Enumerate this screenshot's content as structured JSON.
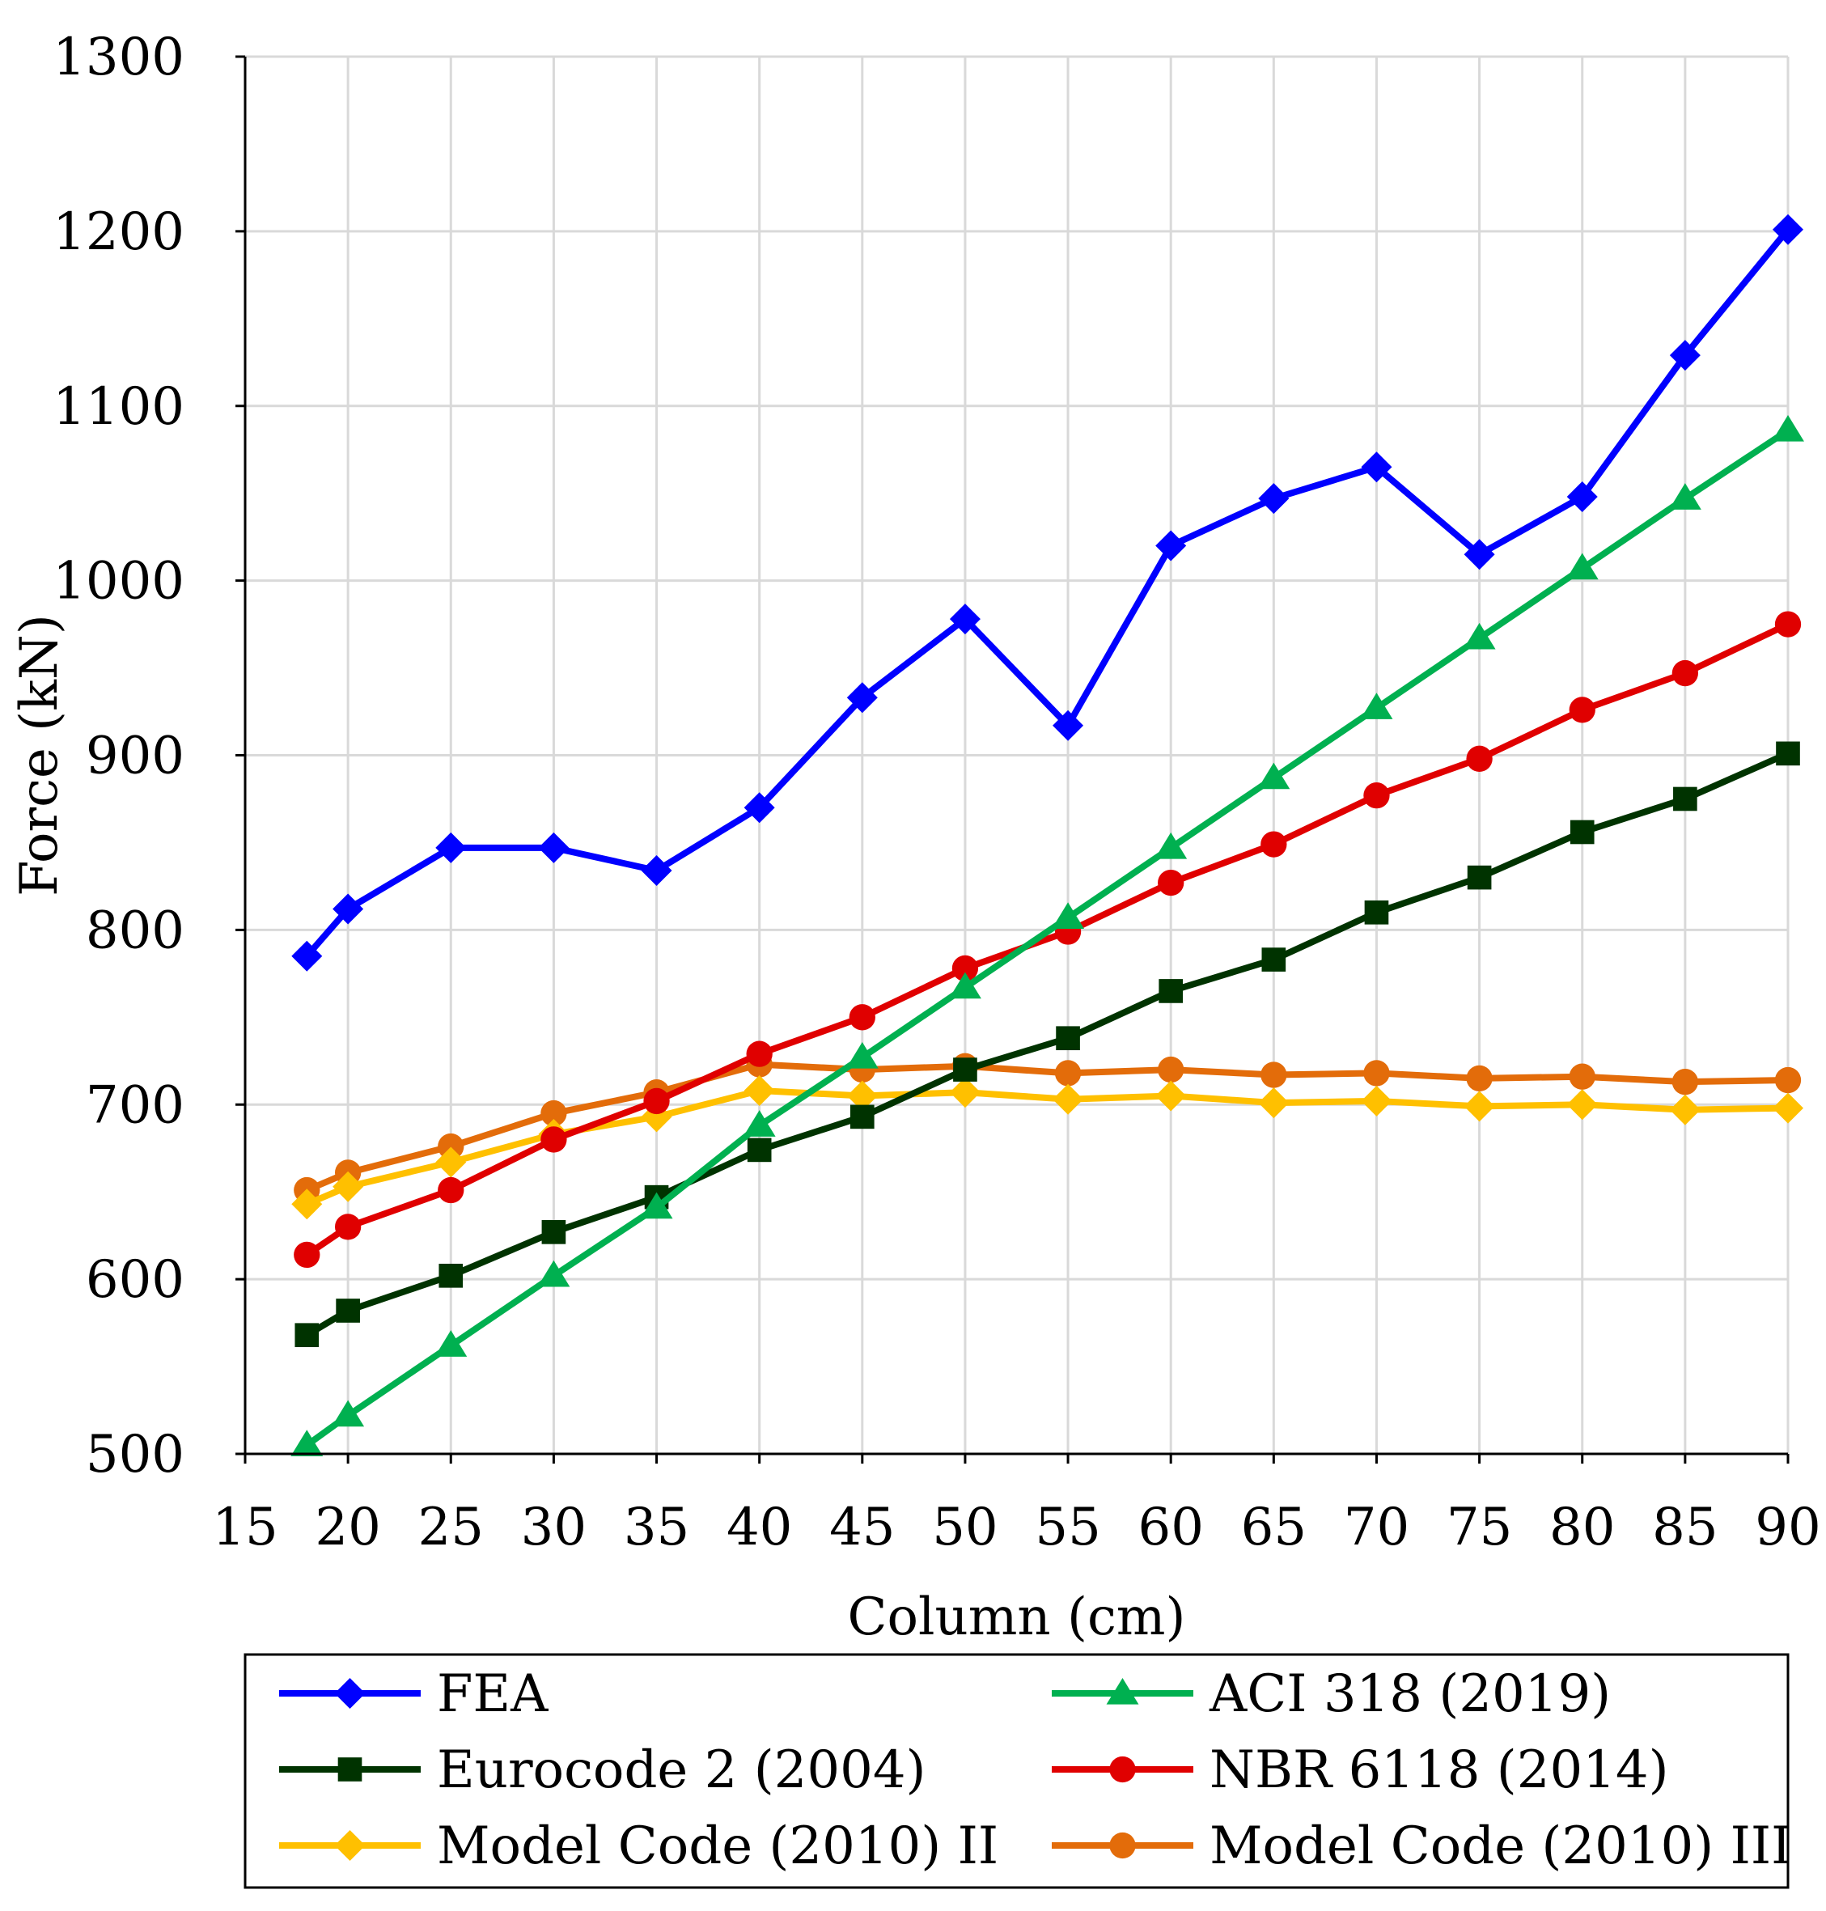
{
  "chart_data": {
    "type": "line",
    "title": "",
    "xlabel": "Column (cm)",
    "ylabel": "Force (kN)",
    "xlim": [
      15,
      90
    ],
    "ylim": [
      500,
      1300
    ],
    "xticks": [
      15,
      20,
      25,
      30,
      35,
      40,
      45,
      50,
      55,
      60,
      65,
      70,
      75,
      80,
      85,
      90
    ],
    "yticks": [
      500,
      600,
      700,
      800,
      900,
      1000,
      1100,
      1200,
      1300
    ],
    "grid": true,
    "legend_position": "bottom",
    "x": [
      18,
      20,
      25,
      30,
      35,
      40,
      45,
      50,
      55,
      60,
      65,
      70,
      75,
      80,
      85,
      90
    ],
    "series": [
      {
        "name": "FEA",
        "color": "#0000ff",
        "marker": "diamond",
        "values": [
          785,
          812,
          847,
          847,
          834,
          870,
          933,
          978,
          917,
          1020,
          1047,
          1065,
          1015,
          1048,
          1129,
          1201
        ]
      },
      {
        "name": "ACI 318 (2019)",
        "color": "#00b050",
        "marker": "triangle",
        "values": [
          505,
          522,
          562,
          602,
          641,
          688,
          727,
          767,
          807,
          847,
          887,
          927,
          967,
          1007,
          1047,
          1086
        ]
      },
      {
        "name": "Eurocode 2 (2004)",
        "color": "#003300",
        "marker": "square",
        "values": [
          568,
          582,
          602,
          627,
          647,
          674,
          693,
          720,
          738,
          765,
          783,
          810,
          830,
          856,
          875,
          901
        ]
      },
      {
        "name": "NBR 6118 (2014)",
        "color": "#e00000",
        "marker": "circle",
        "values": [
          614,
          630,
          651,
          680,
          702,
          729,
          750,
          778,
          799,
          827,
          849,
          877,
          898,
          926,
          947,
          975
        ]
      },
      {
        "name": "Model Code (2010) II",
        "color": "#ffc000",
        "marker": "diamond",
        "values": [
          643,
          653,
          667,
          683,
          693,
          708,
          705,
          707,
          703,
          705,
          701,
          702,
          699,
          700,
          697,
          698
        ]
      },
      {
        "name": "Model Code (2010) III",
        "color": "#e36c0a",
        "marker": "circle",
        "values": [
          651,
          661,
          676,
          695,
          707,
          723,
          720,
          722,
          718,
          720,
          717,
          718,
          715,
          716,
          713,
          714
        ]
      }
    ]
  }
}
